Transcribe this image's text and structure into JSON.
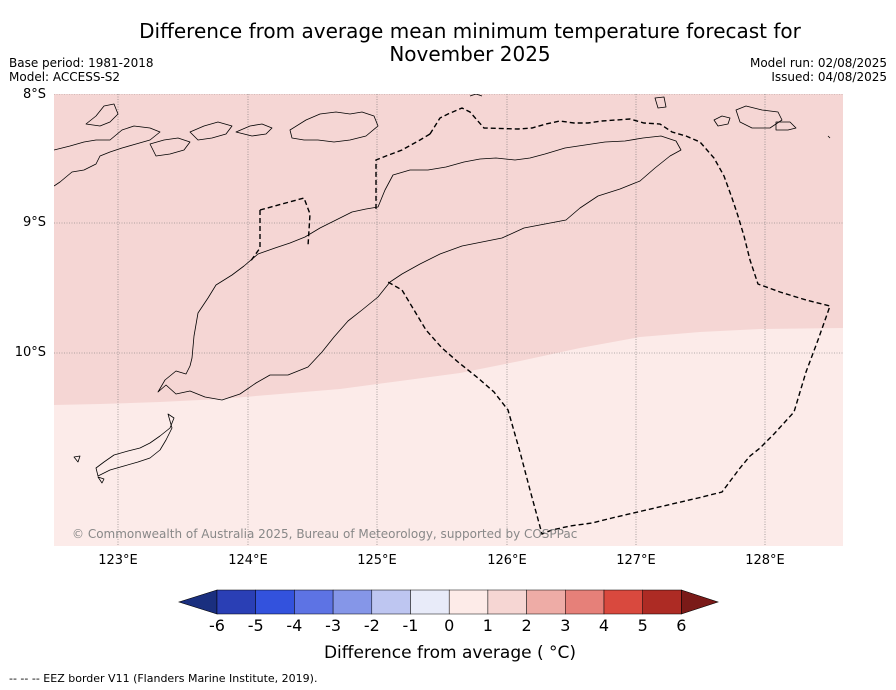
{
  "title_line1": "Difference from average mean minimum temperature forecast for",
  "title_line2": "November 2025",
  "base_period": "Base period: 1981-2018",
  "model": "Model: ACCESS-S2",
  "model_run": "Model run: 02/08/2025",
  "issued": "Issued: 04/08/2025",
  "lat_labels": [
    "8°S",
    "9°S",
    "10°S"
  ],
  "lon_labels": [
    "123°E",
    "124°E",
    "125°E",
    "126°E",
    "127°E",
    "128°E"
  ],
  "copyright": "© Commonwealth of Australia 2025, Bureau of Meteorology, supported by COSPPac",
  "colorbar": {
    "ticks": [
      "-6",
      "-5",
      "-4",
      "-3",
      "-2",
      "-1",
      "0",
      "1",
      "2",
      "3",
      "4",
      "5",
      "6"
    ],
    "label": "Difference from average ( °C)",
    "colors": [
      "#1a2f7f",
      "#2a3fb5",
      "#3352dd",
      "#5d73e4",
      "#8596e8",
      "#bec6f1",
      "#e8ebf9",
      "#fdebe8",
      "#f6d6d3",
      "#eeaca6",
      "#e68079",
      "#d9493e",
      "#ad2b24",
      "#7a1a18"
    ]
  },
  "map_fill": {
    "north_category": "1 to 2",
    "north_color": "#f5d6d4",
    "south_category": "0 to 1",
    "south_color": "#fcebe9"
  },
  "footnote": "--  --  -- EEZ border V11 (Flanders Marine Institute, 2019)."
}
